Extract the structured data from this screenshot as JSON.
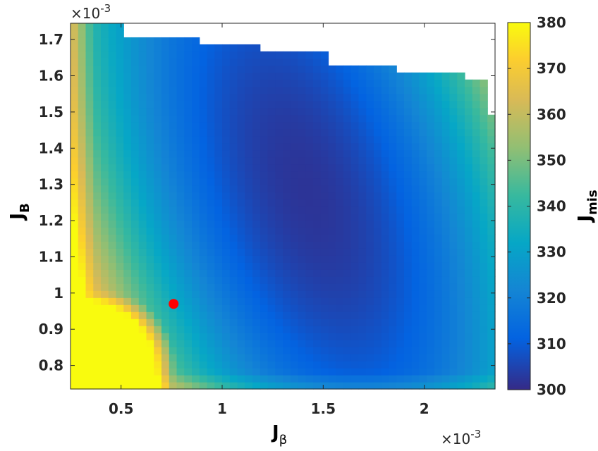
{
  "chart_data": {
    "type": "heatmap",
    "xlabel": "J",
    "xlabel_subscript": "β",
    "ylabel": "J",
    "ylabel_subscript": "B",
    "colorbar_label": "J",
    "colorbar_label_subscript": "mis",
    "x_multiplier": "×10",
    "x_multiplier_exp": "-3",
    "y_multiplier": "×10",
    "y_multiplier_exp": "-3",
    "xlim": [
      0.25,
      2.35
    ],
    "ylim": [
      0.735,
      1.745
    ],
    "x_ticks": [
      0.5,
      1,
      1.5,
      2
    ],
    "x_tick_labels": [
      "0.5",
      "1",
      "1.5",
      "2"
    ],
    "y_ticks": [
      0.8,
      0.9,
      1.0,
      1.1,
      1.2,
      1.3,
      1.4,
      1.5,
      1.6,
      1.7
    ],
    "y_tick_labels": [
      "0.8",
      "0.9",
      "1",
      "1.1",
      "1.2",
      "1.3",
      "1.4",
      "1.5",
      "1.6",
      "1.7"
    ],
    "colorbar_range": [
      300,
      380
    ],
    "colorbar_ticks": [
      300,
      310,
      320,
      330,
      340,
      350,
      360,
      370,
      380
    ],
    "colorbar_tick_labels": [
      "300",
      "310",
      "320",
      "330",
      "340",
      "350",
      "360",
      "370",
      "380"
    ],
    "colormap": "parula",
    "grid": false,
    "minimum_region": {
      "x": 1.42,
      "y": 1.28,
      "value": 302
    },
    "marker": {
      "x": 0.76,
      "y": 0.97,
      "color": "#ff0000"
    },
    "upper_boundary": [
      {
        "x_from": 0.25,
        "x_to": 0.53,
        "y_max": 1.745
      },
      {
        "x_from": 0.53,
        "x_to": 0.87,
        "y_max": 1.715
      },
      {
        "x_from": 0.87,
        "x_to": 1.2,
        "y_max": 1.685
      },
      {
        "x_from": 1.2,
        "x_to": 1.53,
        "y_max": 1.66
      },
      {
        "x_from": 1.53,
        "x_to": 1.86,
        "y_max": 1.63
      },
      {
        "x_from": 1.86,
        "x_to": 2.2,
        "y_max": 1.605
      },
      {
        "x_from": 2.2,
        "x_to": 2.3,
        "y_max": 1.585
      },
      {
        "x_from": 2.3,
        "x_to": 2.35,
        "y_max": 1.5
      }
    ],
    "valid_x_min": 0.25
  }
}
